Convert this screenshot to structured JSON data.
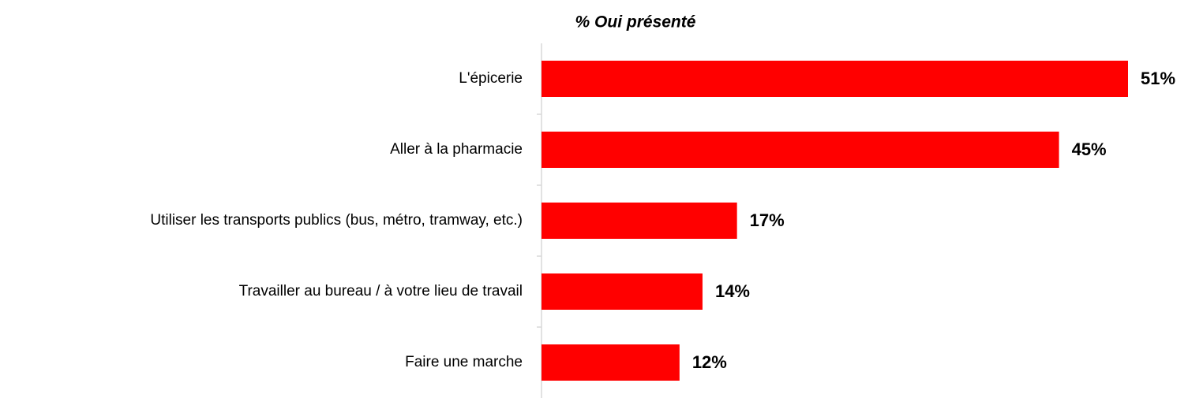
{
  "chart_data": {
    "type": "bar",
    "orientation": "horizontal",
    "title": "% Oui présenté",
    "categories": [
      "L'épicerie",
      "Aller à la pharmacie",
      "Utiliser les transports publics (bus, métro, tramway, etc.)",
      "Travailler au bureau / à votre lieu de travail",
      "Faire une marche"
    ],
    "values": [
      51,
      45,
      17,
      14,
      12
    ],
    "value_labels": [
      "51%",
      "45%",
      "17%",
      "14%",
      "12%"
    ],
    "color": "#ff0000"
  }
}
